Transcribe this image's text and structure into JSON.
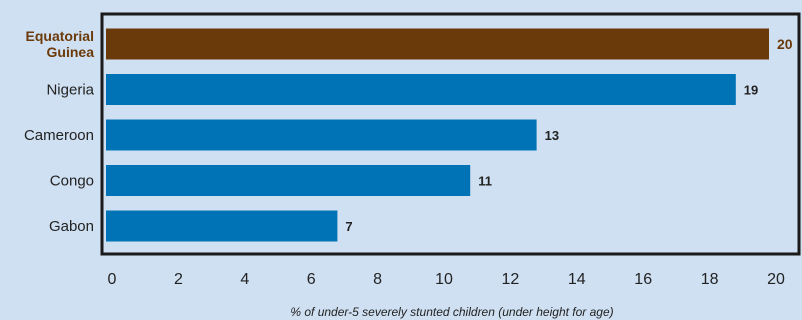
{
  "chart_data": {
    "type": "bar",
    "orientation": "horizontal",
    "categories": [
      "Equatorial Guinea",
      "Nigeria",
      "Cameroon",
      "Congo",
      "Gabon"
    ],
    "category_lines": [
      [
        "Equatorial",
        "Guinea"
      ],
      [
        "Nigeria"
      ],
      [
        "Cameroon"
      ],
      [
        "Congo"
      ],
      [
        "Gabon"
      ]
    ],
    "values": [
      20,
      19,
      13,
      11,
      7
    ],
    "value_labels": [
      "20",
      "19",
      "13",
      "11",
      "7"
    ],
    "highlight_index": 0,
    "xlim": [
      0,
      20
    ],
    "x_ticks": [
      0,
      2,
      4,
      6,
      8,
      10,
      12,
      14,
      16,
      18,
      20
    ],
    "xlabel": "% of under-5 severely stunted children (under height for age)",
    "grid": false,
    "legend": "none",
    "colors": {
      "background": "#cfe0f2",
      "bar": "#0073b7",
      "highlight": "#6b3a0a",
      "axis": "#1a1a1a",
      "text": "#222222"
    }
  }
}
